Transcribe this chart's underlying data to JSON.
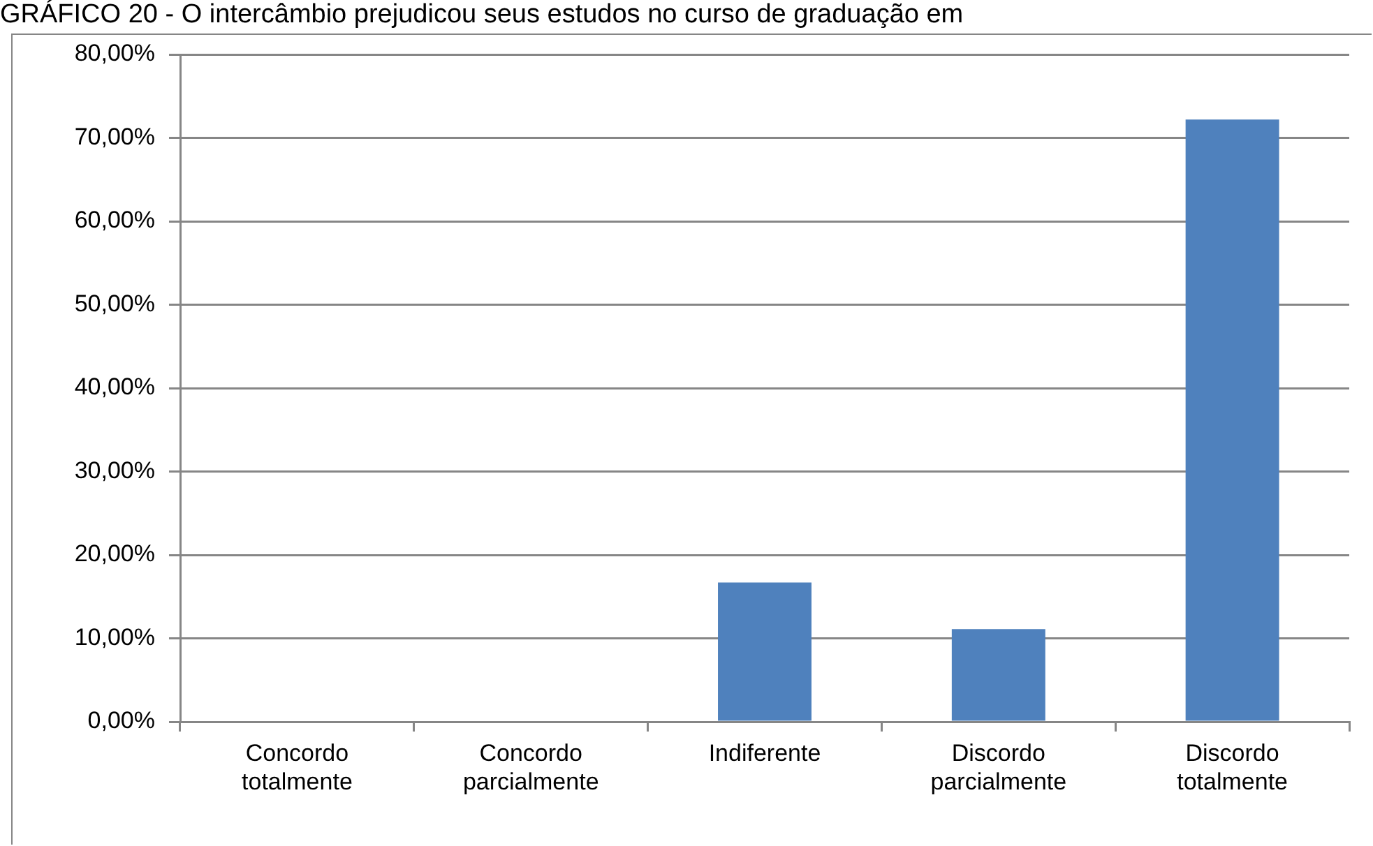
{
  "chart_data": {
    "type": "bar",
    "title": "GRÁFICO 20 - O intercâmbio prejudicou seus estudos no curso de graduação em",
    "categories": [
      "Concordo totalmente",
      "Concordo parcialmente",
      "Indiferente",
      "Discordo parcialmente",
      "Discordo totalmente"
    ],
    "values": [
      0,
      0,
      16.7,
      11.1,
      72.2
    ],
    "color": "#4f81bd",
    "ylim": [
      0,
      80
    ],
    "yticks": [
      {
        "value": 0,
        "label": "0,00%"
      },
      {
        "value": 10,
        "label": "10,00%"
      },
      {
        "value": 20,
        "label": "20,00%"
      },
      {
        "value": 30,
        "label": "30,00%"
      },
      {
        "value": 40,
        "label": "40,00%"
      },
      {
        "value": 50,
        "label": "50,00%"
      },
      {
        "value": 60,
        "label": "60,00%"
      },
      {
        "value": 70,
        "label": "70,00%"
      },
      {
        "value": 80,
        "label": "80,00%"
      }
    ],
    "grid": "y",
    "legend": false
  }
}
